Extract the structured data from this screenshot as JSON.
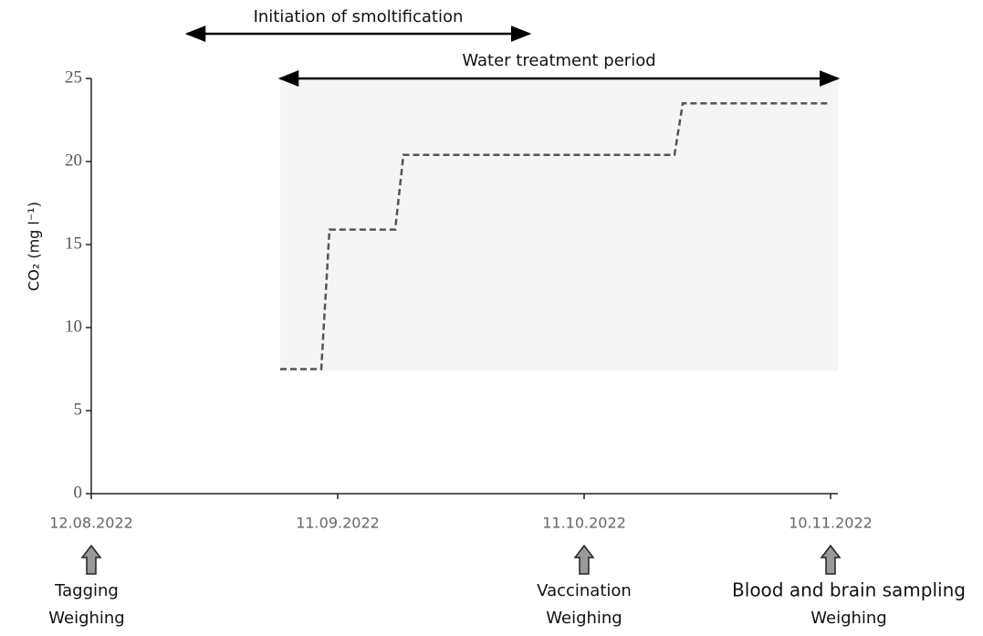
{
  "chart_data": {
    "type": "line",
    "y_label": "CO₂ (mg l⁻¹)",
    "xlim": [
      "12.08.2022",
      "10.11.2022"
    ],
    "xticks": [
      "12.08.2022",
      "11.09.2022",
      "11.10.2022",
      "10.11.2022"
    ],
    "ylim": [
      0,
      25
    ],
    "yticks": [
      0,
      5,
      10,
      15,
      20,
      25
    ],
    "series": [
      {
        "color": "#555555",
        "x": [
          "04.09.2022",
          "09.09.2022",
          "10.09.2022",
          "18.09.2022",
          "19.09.2022",
          "22.10.2022",
          "23.10.2022",
          "10.11.2022"
        ],
        "values": [
          7.5,
          7.5,
          15.9,
          15.9,
          20.4,
          20.4,
          23.5,
          23.5
        ]
      }
    ],
    "shaded_region": {
      "x": [
        "04.09.2022",
        "10.11.2022"
      ],
      "y": [
        7.4,
        25
      ],
      "color": "#f5f5f5"
    },
    "periods": [
      {
        "label": "Initiation of smoltification"
      },
      {
        "label": "Water treatment period"
      }
    ],
    "events": [
      {
        "date": "12.08.2022",
        "lines": [
          "Tagging",
          "Weighing"
        ]
      },
      {
        "date": "11.10.2022",
        "lines": [
          "Vaccination",
          "Weighing"
        ]
      },
      {
        "date": "10.11.2022",
        "lines": [
          "Blood and brain sampling",
          "Weighing"
        ]
      }
    ]
  }
}
